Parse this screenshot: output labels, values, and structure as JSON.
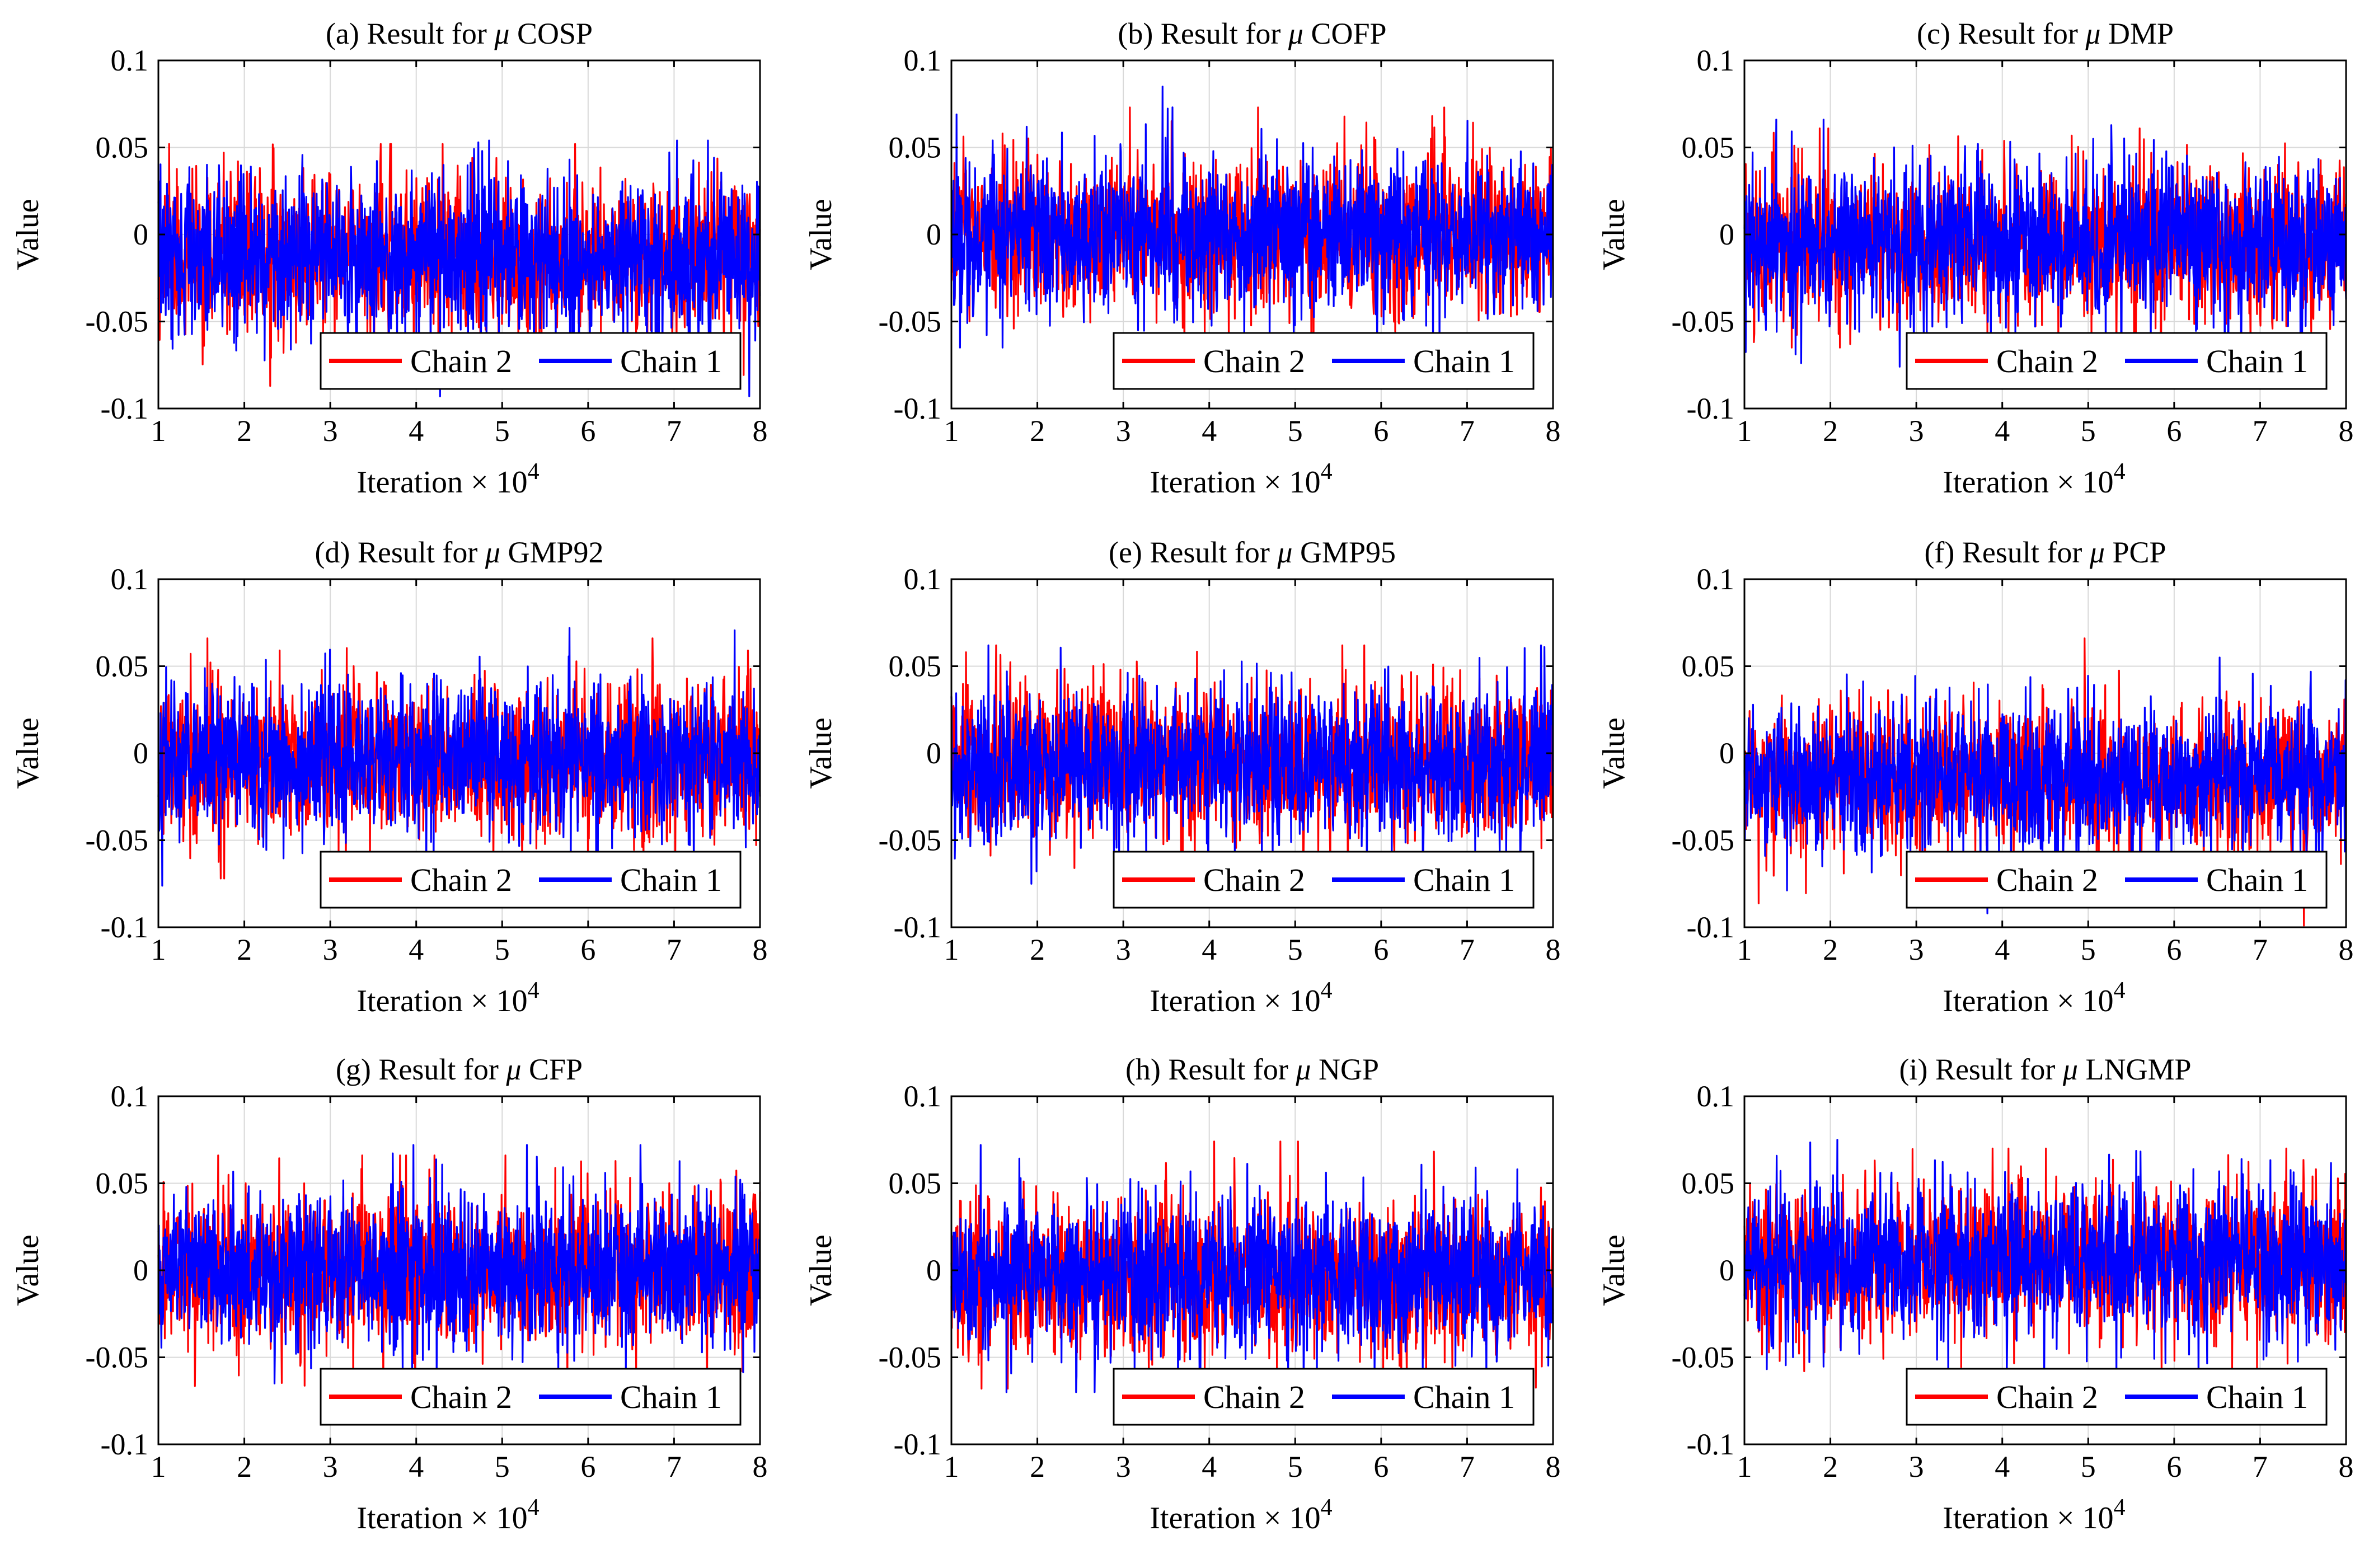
{
  "figure": {
    "legend_position": "bottom-right",
    "colors": {
      "chain2": "#ff0000",
      "chain1": "#0000ff",
      "grid": "#d9d9d9",
      "axis": "#000000"
    }
  },
  "chart_data": [
    {
      "type": "line",
      "title": "(a) Result for μ COSP",
      "title_prefix": "(a) Result for ",
      "title_symbol": "μ",
      "title_name": "COSP",
      "xlabel": "Iteration × 10",
      "xlabel_main": "Iteration × 10",
      "xlabel_exp": "4",
      "ylabel": "Value",
      "xlim": [
        1,
        8
      ],
      "ylim": [
        -0.1,
        0.1
      ],
      "xticks": [
        "1",
        "2",
        "3",
        "4",
        "5",
        "6",
        "7",
        "8"
      ],
      "yticks": [
        "-0.1",
        "-0.05",
        "0",
        "0.05",
        "0.1"
      ],
      "grid": true,
      "legend": [
        "Chain 2",
        "Chain 1"
      ],
      "series": [
        {
          "name": "Chain 2",
          "color": "#ff0000",
          "mean": -0.012,
          "sd": 0.022,
          "max": 0.052,
          "min": -0.087,
          "seed": 11
        },
        {
          "name": "Chain 1",
          "color": "#0000ff",
          "mean": -0.012,
          "sd": 0.022,
          "max": 0.054,
          "min": -0.093,
          "seed": 12
        }
      ]
    },
    {
      "type": "line",
      "title": "(b) Result for μ COFP",
      "title_prefix": "(b) Result for ",
      "title_symbol": "μ",
      "title_name": "COFP",
      "xlabel": "Iteration × 10",
      "xlabel_main": "Iteration × 10",
      "xlabel_exp": "4",
      "ylabel": "Value",
      "xlim": [
        1,
        8
      ],
      "ylim": [
        -0.1,
        0.1
      ],
      "xticks": [
        "1",
        "2",
        "3",
        "4",
        "5",
        "6",
        "7",
        "8"
      ],
      "yticks": [
        "-0.1",
        "-0.05",
        "0",
        "0.05",
        "0.1"
      ],
      "grid": true,
      "legend": [
        "Chain 2",
        "Chain 1"
      ],
      "series": [
        {
          "name": "Chain 2",
          "color": "#ff0000",
          "mean": 0.0,
          "sd": 0.022,
          "max": 0.073,
          "min": -0.077,
          "seed": 21
        },
        {
          "name": "Chain 1",
          "color": "#0000ff",
          "mean": 0.0,
          "sd": 0.022,
          "max": 0.085,
          "min": -0.065,
          "seed": 22
        }
      ]
    },
    {
      "type": "line",
      "title": "(c) Result for μ DMP",
      "title_prefix": "(c) Result for ",
      "title_symbol": "μ",
      "title_name": "DMP",
      "xlabel": "Iteration × 10",
      "xlabel_main": "Iteration × 10",
      "xlabel_exp": "4",
      "ylabel": "Value",
      "xlim": [
        1,
        8
      ],
      "ylim": [
        -0.1,
        0.1
      ],
      "xticks": [
        "1",
        "2",
        "3",
        "4",
        "5",
        "6",
        "7",
        "8"
      ],
      "yticks": [
        "-0.1",
        "-0.05",
        "0",
        "0.05",
        "0.1"
      ],
      "grid": true,
      "legend": [
        "Chain 2",
        "Chain 1"
      ],
      "series": [
        {
          "name": "Chain 2",
          "color": "#ff0000",
          "mean": -0.005,
          "sd": 0.022,
          "max": 0.061,
          "min": -0.065,
          "seed": 31
        },
        {
          "name": "Chain 1",
          "color": "#0000ff",
          "mean": -0.005,
          "sd": 0.022,
          "max": 0.066,
          "min": -0.087,
          "seed": 32
        }
      ]
    },
    {
      "type": "line",
      "title": "(d) Result for μ GMP92",
      "title_prefix": "(d) Result for ",
      "title_symbol": "μ",
      "title_name": "GMP92",
      "xlabel": "Iteration × 10",
      "xlabel_main": "Iteration × 10",
      "xlabel_exp": "4",
      "ylabel": "Value",
      "xlim": [
        1,
        8
      ],
      "ylim": [
        -0.1,
        0.1
      ],
      "xticks": [
        "1",
        "2",
        "3",
        "4",
        "5",
        "6",
        "7",
        "8"
      ],
      "yticks": [
        "-0.1",
        "-0.05",
        "0",
        "0.05",
        "0.1"
      ],
      "grid": true,
      "legend": [
        "Chain 2",
        "Chain 1"
      ],
      "series": [
        {
          "name": "Chain 2",
          "color": "#ff0000",
          "mean": -0.004,
          "sd": 0.022,
          "max": 0.066,
          "min": -0.072,
          "seed": 41
        },
        {
          "name": "Chain 1",
          "color": "#0000ff",
          "mean": -0.004,
          "sd": 0.022,
          "max": 0.072,
          "min": -0.082,
          "seed": 42
        }
      ]
    },
    {
      "type": "line",
      "title": "(e) Result for μ GMP95",
      "title_prefix": "(e) Result for ",
      "title_symbol": "μ",
      "title_name": "GMP95",
      "xlabel": "Iteration × 10",
      "xlabel_main": "Iteration × 10",
      "xlabel_exp": "4",
      "ylabel": "Value",
      "xlim": [
        1,
        8
      ],
      "ylim": [
        -0.1,
        0.1
      ],
      "xticks": [
        "1",
        "2",
        "3",
        "4",
        "5",
        "6",
        "7",
        "8"
      ],
      "yticks": [
        "-0.1",
        "-0.05",
        "0",
        "0.05",
        "0.1"
      ],
      "grid": true,
      "legend": [
        "Chain 2",
        "Chain 1"
      ],
      "series": [
        {
          "name": "Chain 2",
          "color": "#ff0000",
          "mean": -0.006,
          "sd": 0.022,
          "max": 0.062,
          "min": -0.083,
          "seed": 51
        },
        {
          "name": "Chain 1",
          "color": "#0000ff",
          "mean": -0.006,
          "sd": 0.022,
          "max": 0.062,
          "min": -0.075,
          "seed": 52
        }
      ]
    },
    {
      "type": "line",
      "title": "(f) Result for μ PCP",
      "title_prefix": "(f) Result for ",
      "title_symbol": "μ",
      "title_name": "PCP",
      "xlabel": "Iteration × 10",
      "xlabel_main": "Iteration × 10",
      "xlabel_exp": "4",
      "ylabel": "Value",
      "xlim": [
        1,
        8
      ],
      "ylim": [
        -0.1,
        0.1
      ],
      "xticks": [
        "1",
        "2",
        "3",
        "4",
        "5",
        "6",
        "7",
        "8"
      ],
      "yticks": [
        "-0.1",
        "-0.05",
        "0",
        "0.05",
        "0.1"
      ],
      "grid": true,
      "legend": [
        "Chain 2",
        "Chain 1"
      ],
      "series": [
        {
          "name": "Chain 2",
          "color": "#ff0000",
          "mean": -0.015,
          "sd": 0.021,
          "max": 0.066,
          "min": -0.099,
          "seed": 61
        },
        {
          "name": "Chain 1",
          "color": "#0000ff",
          "mean": -0.015,
          "sd": 0.021,
          "max": 0.055,
          "min": -0.092,
          "seed": 62
        }
      ]
    },
    {
      "type": "line",
      "title": "(g) Result for μ CFP",
      "title_prefix": "(g) Result for ",
      "title_symbol": "μ",
      "title_name": "CFP",
      "xlabel": "Iteration × 10",
      "xlabel_main": "Iteration × 10",
      "xlabel_exp": "4",
      "ylabel": "Value",
      "xlim": [
        1,
        8
      ],
      "ylim": [
        -0.1,
        0.1
      ],
      "xticks": [
        "1",
        "2",
        "3",
        "4",
        "5",
        "6",
        "7",
        "8"
      ],
      "yticks": [
        "-0.1",
        "-0.05",
        "0",
        "0.05",
        "0.1"
      ],
      "grid": true,
      "legend": [
        "Chain 2",
        "Chain 1"
      ],
      "series": [
        {
          "name": "Chain 2",
          "color": "#ff0000",
          "mean": 0.0,
          "sd": 0.022,
          "max": 0.066,
          "min": -0.07,
          "seed": 71
        },
        {
          "name": "Chain 1",
          "color": "#0000ff",
          "mean": 0.0,
          "sd": 0.022,
          "max": 0.072,
          "min": -0.065,
          "seed": 72
        }
      ]
    },
    {
      "type": "line",
      "title": "(h) Result for μ NGP",
      "title_prefix": "(h) Result for ",
      "title_symbol": "μ",
      "title_name": "NGP",
      "xlabel": "Iteration × 10",
      "xlabel_main": "Iteration × 10",
      "xlabel_exp": "4",
      "ylabel": "Value",
      "xlim": [
        1,
        8
      ],
      "ylim": [
        -0.1,
        0.1
      ],
      "xticks": [
        "1",
        "2",
        "3",
        "4",
        "5",
        "6",
        "7",
        "8"
      ],
      "yticks": [
        "-0.1",
        "-0.05",
        "0",
        "0.05",
        "0.1"
      ],
      "grid": true,
      "legend": [
        "Chain 2",
        "Chain 1"
      ],
      "series": [
        {
          "name": "Chain 2",
          "color": "#ff0000",
          "mean": -0.004,
          "sd": 0.022,
          "max": 0.074,
          "min": -0.068,
          "seed": 81
        },
        {
          "name": "Chain 1",
          "color": "#0000ff",
          "mean": -0.004,
          "sd": 0.022,
          "max": 0.072,
          "min": -0.07,
          "seed": 82
        }
      ]
    },
    {
      "type": "line",
      "title": "(i) Result for μ LNGMP",
      "title_prefix": "(i) Result for ",
      "title_symbol": "μ",
      "title_name": "LNGMP",
      "xlabel": "Iteration × 10",
      "xlabel_main": "Iteration × 10",
      "xlabel_exp": "4",
      "ylabel": "Value",
      "xlim": [
        1,
        8
      ],
      "ylim": [
        -0.1,
        0.1
      ],
      "xticks": [
        "1",
        "2",
        "3",
        "4",
        "5",
        "6",
        "7",
        "8"
      ],
      "yticks": [
        "-0.1",
        "-0.05",
        "0",
        "0.05",
        "0.1"
      ],
      "grid": true,
      "legend": [
        "Chain 2",
        "Chain 1"
      ],
      "series": [
        {
          "name": "Chain 2",
          "color": "#ff0000",
          "mean": 0.006,
          "sd": 0.022,
          "max": 0.07,
          "min": -0.058,
          "seed": 91
        },
        {
          "name": "Chain 1",
          "color": "#0000ff",
          "mean": 0.006,
          "sd": 0.022,
          "max": 0.075,
          "min": -0.066,
          "seed": 92
        }
      ]
    }
  ]
}
